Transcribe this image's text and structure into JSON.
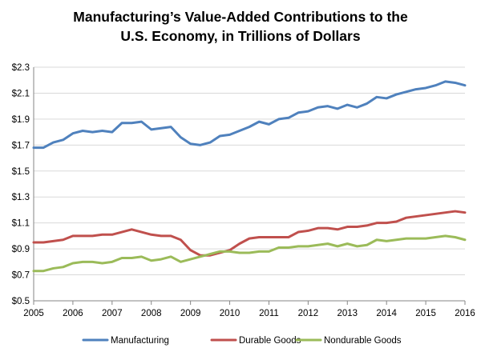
{
  "chart_data": {
    "type": "line",
    "title": "Manufacturing’s Value-Added Contributions to the U.S. Economy, in Trillions of Dollars",
    "title_lines": [
      "Manufacturing’s Value-Added Contributions to the",
      "U.S. Economy, in Trillions of Dollars"
    ],
    "xlabel": "",
    "ylabel": "",
    "x_ticks": [
      "2005",
      "2006",
      "2007",
      "2008",
      "2009",
      "2010",
      "2011",
      "2012",
      "2013",
      "2014",
      "2015",
      "2016"
    ],
    "xlim": [
      2005,
      2016
    ],
    "y_ticks": [
      "$0.5",
      "$0.7",
      "$0.9",
      "$1.1",
      "$1.3",
      "$1.5",
      "$1.7",
      "$1.9",
      "$2.1",
      "$2.3"
    ],
    "y_tick_values": [
      0.5,
      0.7,
      0.9,
      1.1,
      1.3,
      1.5,
      1.7,
      1.9,
      2.1,
      2.3
    ],
    "ylim": [
      0.5,
      2.3
    ],
    "grid": true,
    "legend_position": "bottom",
    "x": [
      2005.0,
      2005.25,
      2005.5,
      2005.75,
      2006.0,
      2006.25,
      2006.5,
      2006.75,
      2007.0,
      2007.25,
      2007.5,
      2007.75,
      2008.0,
      2008.25,
      2008.5,
      2008.75,
      2009.0,
      2009.25,
      2009.5,
      2009.75,
      2010.0,
      2010.25,
      2010.5,
      2010.75,
      2011.0,
      2011.25,
      2011.5,
      2011.75,
      2012.0,
      2012.25,
      2012.5,
      2012.75,
      2013.0,
      2013.25,
      2013.5,
      2013.75,
      2014.0,
      2014.25,
      2014.5,
      2014.75,
      2015.0,
      2015.25,
      2015.5,
      2015.75,
      2016.0
    ],
    "series": [
      {
        "name": "Manufacturing",
        "color": "#4F81BD",
        "values": [
          1.68,
          1.68,
          1.72,
          1.74,
          1.79,
          1.81,
          1.8,
          1.81,
          1.8,
          1.87,
          1.87,
          1.88,
          1.82,
          1.83,
          1.84,
          1.76,
          1.71,
          1.7,
          1.72,
          1.77,
          1.78,
          1.81,
          1.84,
          1.88,
          1.86,
          1.9,
          1.91,
          1.95,
          1.96,
          1.99,
          2.0,
          1.98,
          2.01,
          1.99,
          2.02,
          2.07,
          2.06,
          2.09,
          2.11,
          2.13,
          2.14,
          2.16,
          2.19,
          2.18,
          2.16
        ]
      },
      {
        "name": "Durable Goods",
        "color": "#C0504D",
        "values": [
          0.95,
          0.95,
          0.96,
          0.97,
          1.0,
          1.0,
          1.0,
          1.01,
          1.01,
          1.03,
          1.05,
          1.03,
          1.01,
          1.0,
          1.0,
          0.97,
          0.89,
          0.85,
          0.85,
          0.87,
          0.89,
          0.94,
          0.98,
          0.99,
          0.99,
          0.99,
          0.99,
          1.03,
          1.04,
          1.06,
          1.06,
          1.05,
          1.07,
          1.07,
          1.08,
          1.1,
          1.1,
          1.11,
          1.14,
          1.15,
          1.16,
          1.17,
          1.18,
          1.19,
          1.18
        ]
      },
      {
        "name": "Nondurable Goods",
        "color": "#9BBB59",
        "values": [
          0.73,
          0.73,
          0.75,
          0.76,
          0.79,
          0.8,
          0.8,
          0.79,
          0.8,
          0.83,
          0.83,
          0.84,
          0.81,
          0.82,
          0.84,
          0.8,
          0.82,
          0.84,
          0.86,
          0.88,
          0.88,
          0.87,
          0.87,
          0.88,
          0.88,
          0.91,
          0.91,
          0.92,
          0.92,
          0.93,
          0.94,
          0.92,
          0.94,
          0.92,
          0.93,
          0.97,
          0.96,
          0.97,
          0.98,
          0.98,
          0.98,
          0.99,
          1.0,
          0.99,
          0.97
        ]
      }
    ]
  }
}
